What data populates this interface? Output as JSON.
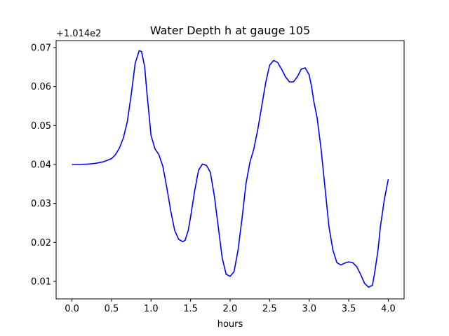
{
  "chart_data": {
    "type": "line",
    "title": "Water Depth h at gauge 105",
    "xlabel": "hours",
    "ylabel": "",
    "offset_label": "+1.014e2",
    "xlim": [
      -0.2,
      4.2
    ],
    "ylim": [
      0.0055,
      0.0718
    ],
    "x_ticks": [
      0.0,
      0.5,
      1.0,
      1.5,
      2.0,
      2.5,
      3.0,
      3.5,
      4.0
    ],
    "x_tick_labels": [
      "0.0",
      "0.5",
      "1.0",
      "1.5",
      "2.0",
      "2.5",
      "3.0",
      "3.5",
      "4.0"
    ],
    "y_ticks": [
      0.01,
      0.02,
      0.03,
      0.04,
      0.05,
      0.06,
      0.07
    ],
    "y_tick_labels": [
      "0.01",
      "0.02",
      "0.03",
      "0.04",
      "0.05",
      "0.06",
      "0.07"
    ],
    "grid": false,
    "series": [
      {
        "color": "#0000ff",
        "x": [
          0.0,
          0.1,
          0.2,
          0.3,
          0.4,
          0.5,
          0.55,
          0.6,
          0.65,
          0.7,
          0.75,
          0.8,
          0.85,
          0.88,
          0.92,
          0.95,
          1.0,
          1.05,
          1.1,
          1.15,
          1.2,
          1.25,
          1.3,
          1.35,
          1.4,
          1.43,
          1.47,
          1.5,
          1.55,
          1.6,
          1.65,
          1.7,
          1.75,
          1.8,
          1.85,
          1.9,
          1.95,
          2.0,
          2.05,
          2.1,
          2.15,
          2.2,
          2.25,
          2.3,
          2.35,
          2.4,
          2.45,
          2.5,
          2.55,
          2.6,
          2.65,
          2.7,
          2.75,
          2.8,
          2.85,
          2.9,
          2.95,
          3.0,
          3.03,
          3.06,
          3.1,
          3.15,
          3.2,
          3.25,
          3.3,
          3.35,
          3.4,
          3.45,
          3.5,
          3.55,
          3.6,
          3.65,
          3.7,
          3.75,
          3.8,
          3.83,
          3.87,
          3.9,
          3.95,
          4.0
        ],
        "y": [
          0.04,
          0.04,
          0.0401,
          0.0403,
          0.0407,
          0.0415,
          0.0425,
          0.0442,
          0.0468,
          0.051,
          0.058,
          0.066,
          0.0692,
          0.069,
          0.065,
          0.058,
          0.0475,
          0.044,
          0.0425,
          0.0395,
          0.034,
          0.028,
          0.023,
          0.0208,
          0.0202,
          0.0205,
          0.023,
          0.0265,
          0.033,
          0.0385,
          0.0401,
          0.0398,
          0.038,
          0.032,
          0.024,
          0.016,
          0.0118,
          0.0113,
          0.0125,
          0.018,
          0.026,
          0.035,
          0.0405,
          0.044,
          0.049,
          0.055,
          0.061,
          0.0655,
          0.0667,
          0.0662,
          0.0645,
          0.0625,
          0.0612,
          0.0612,
          0.0625,
          0.0645,
          0.0648,
          0.063,
          0.06,
          0.056,
          0.052,
          0.044,
          0.034,
          0.024,
          0.018,
          0.0148,
          0.0142,
          0.0147,
          0.015,
          0.0148,
          0.0138,
          0.0118,
          0.0095,
          0.0085,
          0.009,
          0.0125,
          0.018,
          0.024,
          0.031,
          0.0362
        ]
      }
    ]
  }
}
